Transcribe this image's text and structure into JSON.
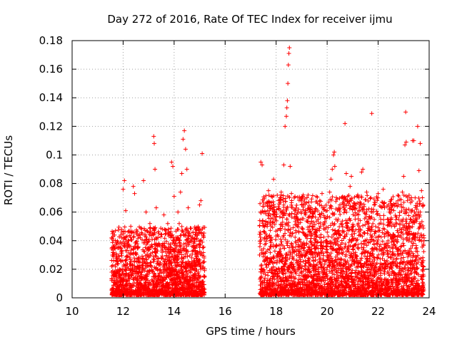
{
  "chart_data": {
    "type": "scatter",
    "title": "Day 272 of 2016, Rate Of TEC Index for receiver ijmu",
    "xlabel": "GPS time / hours",
    "ylabel": "ROTI / TECUs",
    "xlim": [
      10,
      24
    ],
    "ylim": [
      0,
      0.18
    ],
    "x_ticks": [
      10,
      12,
      14,
      16,
      18,
      20,
      22,
      24
    ],
    "x_tick_labels": [
      "10",
      "12",
      "14",
      "16",
      "18",
      "20",
      "22",
      "24"
    ],
    "y_ticks": [
      0,
      0.02,
      0.04,
      0.06,
      0.08,
      0.1,
      0.12,
      0.14,
      0.16,
      0.18
    ],
    "y_tick_labels": [
      "0",
      "0.02",
      "0.04",
      "0.06",
      "0.08",
      "0.1",
      "0.12",
      "0.14",
      "0.16",
      "0.18"
    ],
    "grid": true,
    "marker": "plus",
    "color": "#ff0000",
    "series": [
      {
        "name": "ROTI",
        "points": [
          [
            11.55,
            0.022
          ],
          [
            11.6,
            0.012
          ],
          [
            11.65,
            0.03
          ],
          [
            11.7,
            0.047
          ],
          [
            11.75,
            0.018
          ],
          [
            11.8,
            0.035
          ],
          [
            11.85,
            0.008
          ],
          [
            11.9,
            0.026
          ],
          [
            11.95,
            0.046
          ],
          [
            12.0,
            0.076
          ],
          [
            12.05,
            0.082
          ],
          [
            12.1,
            0.061
          ],
          [
            12.15,
            0.043
          ],
          [
            12.2,
            0.015
          ],
          [
            12.25,
            0.028
          ],
          [
            12.3,
            0.05
          ],
          [
            12.35,
            0.02
          ],
          [
            12.4,
            0.078
          ],
          [
            12.45,
            0.073
          ],
          [
            12.5,
            0.031
          ],
          [
            12.55,
            0.012
          ],
          [
            12.6,
            0.025
          ],
          [
            12.65,
            0.044
          ],
          [
            12.7,
            0.018
          ],
          [
            12.75,
            0.027
          ],
          [
            12.8,
            0.082
          ],
          [
            12.85,
            0.04
          ],
          [
            12.9,
            0.06
          ],
          [
            12.95,
            0.016
          ],
          [
            13.0,
            0.035
          ],
          [
            13.05,
            0.052
          ],
          [
            13.1,
            0.022
          ],
          [
            13.15,
            0.045
          ],
          [
            13.2,
            0.113
          ],
          [
            13.22,
            0.108
          ],
          [
            13.25,
            0.09
          ],
          [
            13.3,
            0.063
          ],
          [
            13.35,
            0.02
          ],
          [
            13.4,
            0.038
          ],
          [
            13.45,
            0.012
          ],
          [
            13.5,
            0.028
          ],
          [
            13.55,
            0.048
          ],
          [
            13.6,
            0.058
          ],
          [
            13.65,
            0.035
          ],
          [
            13.7,
            0.018
          ],
          [
            13.75,
            0.052
          ],
          [
            13.8,
            0.026
          ],
          [
            13.85,
            0.044
          ],
          [
            13.9,
            0.095
          ],
          [
            13.95,
            0.092
          ],
          [
            14.0,
            0.071
          ],
          [
            14.05,
            0.038
          ],
          [
            14.1,
            0.016
          ],
          [
            14.15,
            0.06
          ],
          [
            14.2,
            0.052
          ],
          [
            14.25,
            0.074
          ],
          [
            14.3,
            0.087
          ],
          [
            14.35,
            0.111
          ],
          [
            14.4,
            0.117
          ],
          [
            14.45,
            0.104
          ],
          [
            14.5,
            0.09
          ],
          [
            14.55,
            0.063
          ],
          [
            14.6,
            0.045
          ],
          [
            14.65,
            0.022
          ],
          [
            14.7,
            0.036
          ],
          [
            14.75,
            0.012
          ],
          [
            14.8,
            0.025
          ],
          [
            14.85,
            0.048
          ],
          [
            14.9,
            0.03
          ],
          [
            14.95,
            0.018
          ],
          [
            15.0,
            0.065
          ],
          [
            15.05,
            0.068
          ],
          [
            15.1,
            0.101
          ],
          [
            15.15,
            0.025
          ],
          [
            15.2,
            0.015
          ],
          [
            17.35,
            0.03
          ],
          [
            17.4,
            0.095
          ],
          [
            17.45,
            0.093
          ],
          [
            17.5,
            0.06
          ],
          [
            17.55,
            0.042
          ],
          [
            17.6,
            0.023
          ],
          [
            17.65,
            0.05
          ],
          [
            17.7,
            0.075
          ],
          [
            17.75,
            0.012
          ],
          [
            17.8,
            0.036
          ],
          [
            17.85,
            0.062
          ],
          [
            17.9,
            0.083
          ],
          [
            17.95,
            0.025
          ],
          [
            18.0,
            0.057
          ],
          [
            18.05,
            0.044
          ],
          [
            18.1,
            0.068
          ],
          [
            18.15,
            0.031
          ],
          [
            18.2,
            0.074
          ],
          [
            18.25,
            0.05
          ],
          [
            18.3,
            0.093
          ],
          [
            18.35,
            0.12
          ],
          [
            18.4,
            0.127
          ],
          [
            18.42,
            0.133
          ],
          [
            18.44,
            0.138
          ],
          [
            18.46,
            0.15
          ],
          [
            18.48,
            0.163
          ],
          [
            18.5,
            0.171
          ],
          [
            18.52,
            0.175
          ],
          [
            18.55,
            0.092
          ],
          [
            18.6,
            0.073
          ],
          [
            18.65,
            0.045
          ],
          [
            18.7,
            0.062
          ],
          [
            18.75,
            0.018
          ],
          [
            18.8,
            0.03
          ],
          [
            18.85,
            0.054
          ],
          [
            18.9,
            0.041
          ],
          [
            18.95,
            0.022
          ],
          [
            19.0,
            0.065
          ],
          [
            19.05,
            0.048
          ],
          [
            19.1,
            0.033
          ],
          [
            19.15,
            0.058
          ],
          [
            19.2,
            0.015
          ],
          [
            19.25,
            0.044
          ],
          [
            19.3,
            0.027
          ],
          [
            19.35,
            0.052
          ],
          [
            19.4,
            0.037
          ],
          [
            19.45,
            0.012
          ],
          [
            19.5,
            0.06
          ],
          [
            19.55,
            0.035
          ],
          [
            19.6,
            0.048
          ],
          [
            19.65,
            0.02
          ],
          [
            19.7,
            0.065
          ],
          [
            19.75,
            0.032
          ],
          [
            19.8,
            0.073
          ],
          [
            19.85,
            0.051
          ],
          [
            19.9,
            0.018
          ],
          [
            19.95,
            0.04
          ],
          [
            20.0,
            0.061
          ],
          [
            20.05,
            0.028
          ],
          [
            20.1,
            0.074
          ],
          [
            20.15,
            0.083
          ],
          [
            20.2,
            0.09
          ],
          [
            20.25,
            0.1
          ],
          [
            20.28,
            0.102
          ],
          [
            20.3,
            0.092
          ],
          [
            20.35,
            0.055
          ],
          [
            20.4,
            0.03
          ],
          [
            20.45,
            0.042
          ],
          [
            20.5,
            0.065
          ],
          [
            20.55,
            0.02
          ],
          [
            20.6,
            0.047
          ],
          [
            20.65,
            0.07
          ],
          [
            20.7,
            0.122
          ],
          [
            20.75,
            0.087
          ],
          [
            20.8,
            0.071
          ],
          [
            20.85,
            0.036
          ],
          [
            20.9,
            0.078
          ],
          [
            20.95,
            0.085
          ],
          [
            21.0,
            0.062
          ],
          [
            21.05,
            0.025
          ],
          [
            21.1,
            0.055
          ],
          [
            21.15,
            0.04
          ],
          [
            21.2,
            0.072
          ],
          [
            21.25,
            0.018
          ],
          [
            21.3,
            0.048
          ],
          [
            21.35,
            0.088
          ],
          [
            21.4,
            0.09
          ],
          [
            21.45,
            0.06
          ],
          [
            21.5,
            0.032
          ],
          [
            21.55,
            0.074
          ],
          [
            21.6,
            0.052
          ],
          [
            21.65,
            0.015
          ],
          [
            21.7,
            0.044
          ],
          [
            21.75,
            0.129
          ],
          [
            21.8,
            0.06
          ],
          [
            21.85,
            0.028
          ],
          [
            21.9,
            0.05
          ],
          [
            21.95,
            0.038
          ],
          [
            22.0,
            0.073
          ],
          [
            22.05,
            0.02
          ],
          [
            22.1,
            0.055
          ],
          [
            22.15,
            0.033
          ],
          [
            22.2,
            0.076
          ],
          [
            22.25,
            0.063
          ],
          [
            22.3,
            0.045
          ],
          [
            22.35,
            0.012
          ],
          [
            22.4,
            0.065
          ],
          [
            22.45,
            0.06
          ],
          [
            22.5,
            0.028
          ],
          [
            22.55,
            0.042
          ],
          [
            22.6,
            0.018
          ],
          [
            22.65,
            0.05
          ],
          [
            22.7,
            0.035
          ],
          [
            22.75,
            0.022
          ],
          [
            22.8,
            0.055
          ],
          [
            22.85,
            0.052
          ],
          [
            22.9,
            0.03
          ],
          [
            22.95,
            0.074
          ],
          [
            23.0,
            0.085
          ],
          [
            23.05,
            0.107
          ],
          [
            23.08,
            0.13
          ],
          [
            23.1,
            0.109
          ],
          [
            23.15,
            0.068
          ],
          [
            23.2,
            0.045
          ],
          [
            23.25,
            0.024
          ],
          [
            23.3,
            0.06
          ],
          [
            23.35,
            0.11
          ],
          [
            23.4,
            0.11
          ],
          [
            23.45,
            0.07
          ],
          [
            23.5,
            0.035
          ],
          [
            23.55,
            0.12
          ],
          [
            23.6,
            0.089
          ],
          [
            23.65,
            0.108
          ],
          [
            23.7,
            0.075
          ],
          [
            23.75,
            0.064
          ],
          [
            23.8,
            0.04
          ]
        ]
      }
    ]
  }
}
